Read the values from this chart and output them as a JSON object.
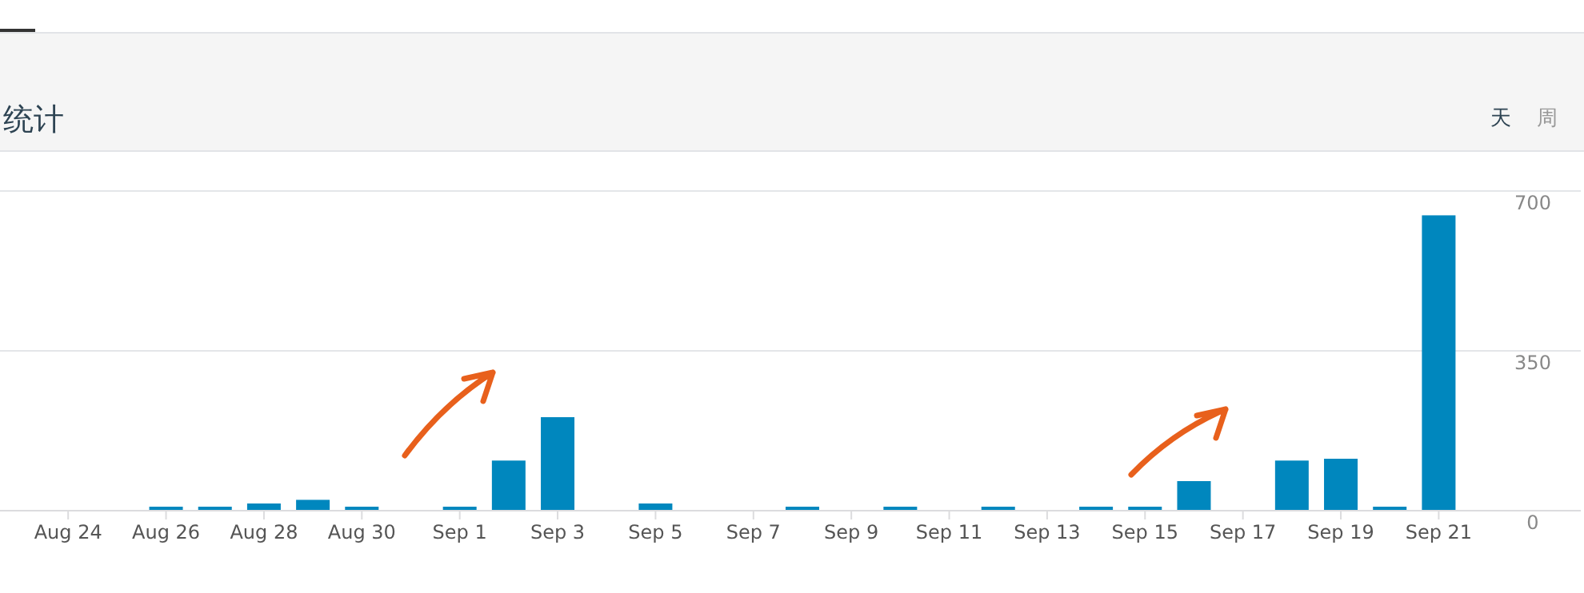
{
  "chart_data": {
    "type": "bar",
    "title": "统计",
    "annotations": [
      "天",
      "周"
    ],
    "categories": [
      null,
      "Aug 24",
      null,
      "Aug 26",
      null,
      "Aug 28",
      null,
      "Aug 30",
      null,
      "Sep 1",
      null,
      "Sep 3",
      null,
      "Sep 5",
      null,
      "Sep 7",
      null,
      "Sep 9",
      null,
      "Sep 11",
      null,
      "Sep 13",
      null,
      "Sep 15",
      null,
      "Sep 17",
      null,
      "Sep 19",
      null,
      "Sep 21"
    ],
    "values": [
      0,
      0,
      0,
      7,
      7,
      14,
      22,
      7,
      0,
      7,
      108,
      203,
      0,
      14,
      0,
      0,
      7,
      0,
      7,
      0,
      7,
      0,
      7,
      7,
      63,
      0,
      108,
      112,
      7,
      645
    ],
    "color": "#0087be",
    "ylim": [
      0,
      700
    ],
    "yticks": [
      0,
      350,
      700
    ],
    "grid": "y"
  }
}
